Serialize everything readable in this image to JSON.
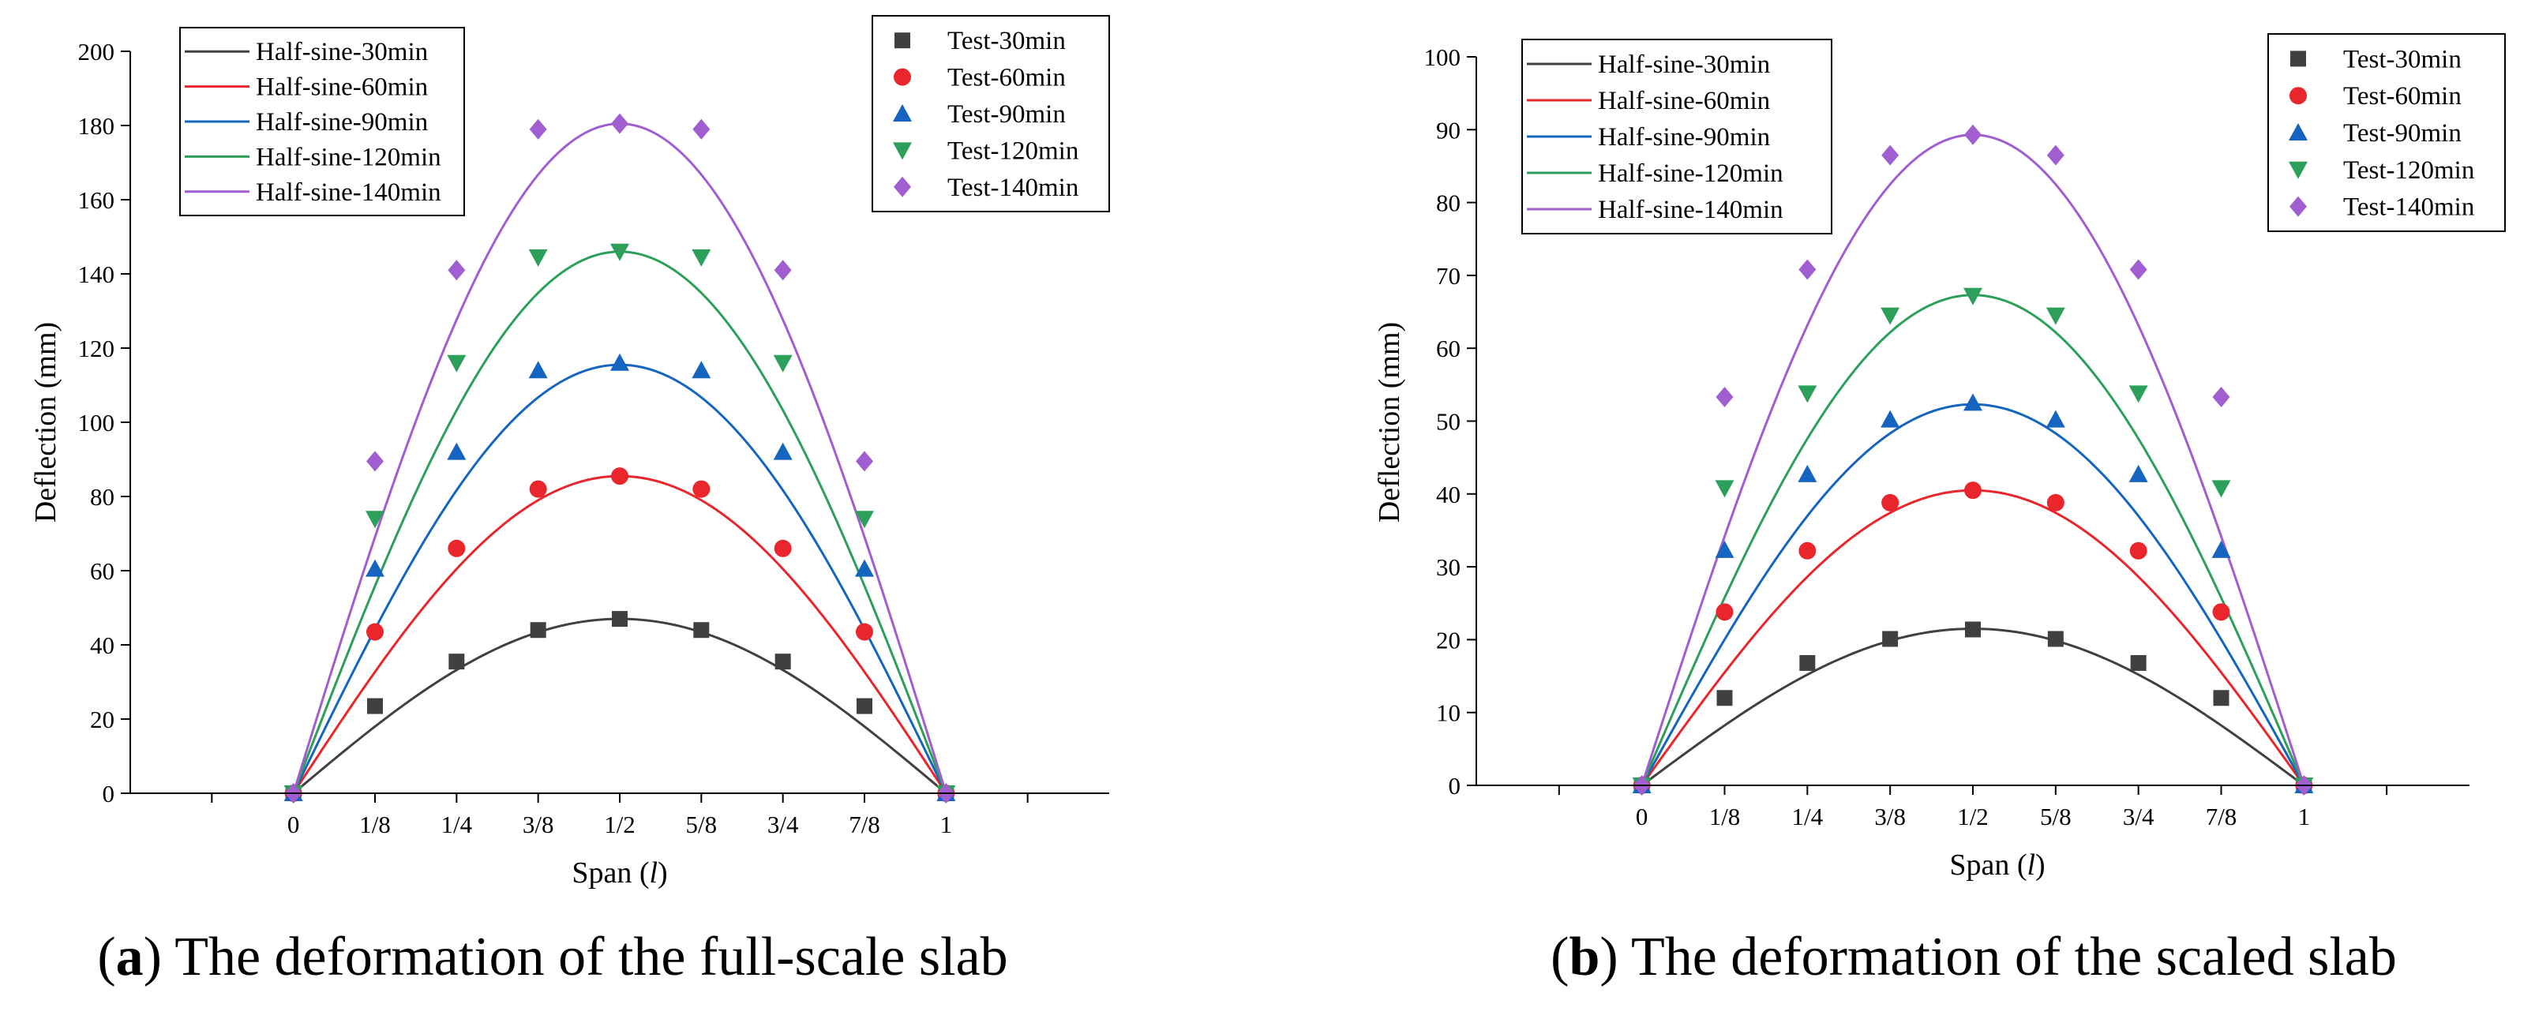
{
  "colors": {
    "30": "#404040",
    "60": "#e8262b",
    "90": "#1565c0",
    "120": "#2ca05a",
    "140": "#a05ed0"
  },
  "chart_data": [
    {
      "type": "line+scatter",
      "panel": "a",
      "caption_letter": "a",
      "caption_text": " The deformation of the full-scale slab",
      "xlabel": "Span",
      "xlabel_var": "l",
      "ylabel": "Deflection (mm)",
      "ylim": [
        0,
        200
      ],
      "ytick_step": 20,
      "yticks": [
        "0",
        "20",
        "40",
        "60",
        "80",
        "100",
        "120",
        "140",
        "160",
        "180",
        "200"
      ],
      "xlim": [
        -0.25,
        1.25
      ],
      "xticks": [
        0,
        0.125,
        0.25,
        0.375,
        0.5,
        0.625,
        0.75,
        0.875,
        1
      ],
      "xtick_labels": [
        "0",
        "1/8",
        "1/4",
        "3/8",
        "1/2",
        "5/8",
        "3/4",
        "7/8",
        "1"
      ],
      "curve_legend": [
        "Half-sine-30min",
        "Half-sine-60min",
        "Half-sine-90min",
        "Half-sine-120min",
        "Half-sine-140min"
      ],
      "test_legend": [
        "Test-30min",
        "Test-60min",
        "Test-90min",
        "Test-120min",
        "Test-140min"
      ],
      "series": [
        {
          "key": "30",
          "amplitude": 47,
          "marker": "square",
          "test_x": [
            0,
            0.125,
            0.25,
            0.375,
            0.5,
            0.625,
            0.75,
            0.875,
            1
          ],
          "test_y": [
            0,
            23.5,
            35.5,
            44,
            47,
            44,
            35.5,
            23.5,
            0
          ]
        },
        {
          "key": "60",
          "amplitude": 85.5,
          "marker": "circle",
          "test_x": [
            0,
            0.125,
            0.25,
            0.375,
            0.5,
            0.625,
            0.75,
            0.875,
            1
          ],
          "test_y": [
            0,
            43.5,
            66,
            82,
            85.5,
            82,
            66,
            43.5,
            0
          ]
        },
        {
          "key": "90",
          "amplitude": 115.5,
          "marker": "triangle-up",
          "test_x": [
            0,
            0.125,
            0.25,
            0.375,
            0.5,
            0.625,
            0.75,
            0.875,
            1
          ],
          "test_y": [
            0,
            60.5,
            92,
            114,
            116,
            114,
            92,
            60.5,
            0
          ]
        },
        {
          "key": "120",
          "amplitude": 146,
          "marker": "triangle-down",
          "test_x": [
            0,
            0.125,
            0.25,
            0.375,
            0.5,
            0.625,
            0.75,
            0.875,
            1
          ],
          "test_y": [
            0,
            74,
            116,
            144.5,
            146,
            144.5,
            116,
            74,
            0
          ]
        },
        {
          "key": "140",
          "amplitude": 180.5,
          "marker": "diamond",
          "test_x": [
            0,
            0.125,
            0.25,
            0.375,
            0.5,
            0.625,
            0.75,
            0.875,
            1
          ],
          "test_y": [
            0,
            89.5,
            141,
            179,
            180.5,
            179,
            141,
            89.5,
            0
          ]
        }
      ]
    },
    {
      "type": "line+scatter",
      "panel": "b",
      "caption_letter": "b",
      "caption_text": " The deformation of the scaled slab",
      "xlabel": "Span",
      "xlabel_var": "l",
      "ylabel": "Deflection (mm)",
      "ylim": [
        0,
        100
      ],
      "ytick_step": 10,
      "yticks": [
        "0",
        "10",
        "20",
        "30",
        "40",
        "50",
        "60",
        "70",
        "80",
        "90",
        "100"
      ],
      "xlim": [
        -0.25,
        1.25
      ],
      "xticks": [
        0,
        0.125,
        0.25,
        0.375,
        0.5,
        0.625,
        0.75,
        0.875,
        1
      ],
      "xtick_labels": [
        "0",
        "1/8",
        "1/4",
        "3/8",
        "1/2",
        "5/8",
        "3/4",
        "7/8",
        "1"
      ],
      "curve_legend": [
        "Half-sine-30min",
        "Half-sine-60min",
        "Half-sine-90min",
        "Half-sine-120min",
        "Half-sine-140min"
      ],
      "test_legend": [
        "Test-30min",
        "Test-60min",
        "Test-90min",
        "Test-120min",
        "Test-140min"
      ],
      "series": [
        {
          "key": "30",
          "amplitude": 21.5,
          "marker": "square",
          "test_x": [
            0,
            0.125,
            0.25,
            0.375,
            0.5,
            0.625,
            0.75,
            0.875,
            1
          ],
          "test_y": [
            0,
            12,
            16.8,
            20.1,
            21.4,
            20.1,
            16.8,
            12,
            0
          ]
        },
        {
          "key": "60",
          "amplitude": 40.5,
          "marker": "circle",
          "test_x": [
            0,
            0.125,
            0.25,
            0.375,
            0.5,
            0.625,
            0.75,
            0.875,
            1
          ],
          "test_y": [
            0,
            23.8,
            32.2,
            38.8,
            40.5,
            38.8,
            32.2,
            23.8,
            0
          ]
        },
        {
          "key": "90",
          "amplitude": 52.3,
          "marker": "triangle-up",
          "test_x": [
            0,
            0.125,
            0.25,
            0.375,
            0.5,
            0.625,
            0.75,
            0.875,
            1
          ],
          "test_y": [
            0,
            32.3,
            42.7,
            50.2,
            52.5,
            50.2,
            42.7,
            32.3,
            0
          ]
        },
        {
          "key": "120",
          "amplitude": 67.3,
          "marker": "triangle-down",
          "test_x": [
            0,
            0.125,
            0.25,
            0.375,
            0.5,
            0.625,
            0.75,
            0.875,
            1
          ],
          "test_y": [
            0,
            40.8,
            53.8,
            64.5,
            67.2,
            64.5,
            53.8,
            40.8,
            0
          ]
        },
        {
          "key": "140",
          "amplitude": 89.3,
          "marker": "diamond",
          "test_x": [
            0,
            0.125,
            0.25,
            0.375,
            0.5,
            0.625,
            0.75,
            0.875,
            1
          ],
          "test_y": [
            0,
            53.3,
            70.8,
            86.5,
            89.3,
            86.5,
            70.8,
            53.3,
            0
          ]
        }
      ]
    }
  ]
}
